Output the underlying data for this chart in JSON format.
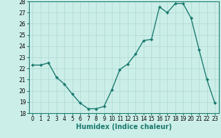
{
  "x": [
    0,
    1,
    2,
    3,
    4,
    5,
    6,
    7,
    8,
    9,
    10,
    11,
    12,
    13,
    14,
    15,
    16,
    17,
    18,
    19,
    20,
    21,
    22,
    23
  ],
  "y": [
    22.3,
    22.3,
    22.5,
    21.2,
    20.6,
    19.7,
    18.9,
    18.4,
    18.4,
    18.6,
    20.1,
    21.9,
    22.4,
    23.3,
    24.5,
    24.6,
    27.5,
    27.0,
    27.8,
    27.8,
    26.5,
    23.7,
    21.0,
    18.9
  ],
  "line_color": "#1a7a6e",
  "marker": "D",
  "marker_size": 2.0,
  "bg_color": "#cceee8",
  "grid_color": "#aad8d0",
  "xlabel": "Humidex (Indice chaleur)",
  "ylim": [
    18,
    28
  ],
  "xlim_min": -0.5,
  "xlim_max": 23.5,
  "yticks": [
    18,
    19,
    20,
    21,
    22,
    23,
    24,
    25,
    26,
    27,
    28
  ],
  "xticks": [
    0,
    1,
    2,
    3,
    4,
    5,
    6,
    7,
    8,
    9,
    10,
    11,
    12,
    13,
    14,
    15,
    16,
    17,
    18,
    19,
    20,
    21,
    22,
    23
  ],
  "xtick_labels": [
    "0",
    "1",
    "2",
    "3",
    "4",
    "5",
    "6",
    "7",
    "8",
    "9",
    "10",
    "11",
    "12",
    "13",
    "14",
    "15",
    "16",
    "17",
    "18",
    "19",
    "20",
    "21",
    "22",
    "23"
  ],
  "tick_fontsize": 5.5,
  "xlabel_fontsize": 7.0,
  "xlabel_color": "#1a7a6e",
  "linewidth": 1.0
}
